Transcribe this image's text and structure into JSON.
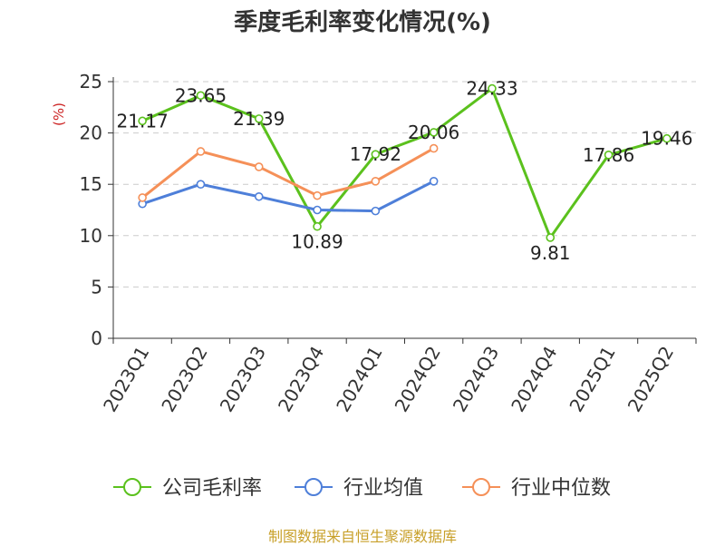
{
  "chart_data": {
    "type": "line",
    "title": "季度毛利率变化情况(%)",
    "ylabel": "(%)",
    "xlabel": "",
    "ylim": [
      0,
      25
    ],
    "yticks": [
      0,
      5,
      10,
      15,
      20,
      25
    ],
    "grid": true,
    "legend_position": "bottom",
    "categories": [
      "2023Q1",
      "2023Q2",
      "2023Q3",
      "2023Q4",
      "2024Q1",
      "2024Q2",
      "2024Q3",
      "2024Q4",
      "2025Q1",
      "2025Q2"
    ],
    "series": [
      {
        "name": "公司毛利率",
        "color": "#5bc11d",
        "values": [
          21.17,
          23.65,
          21.39,
          10.89,
          17.92,
          20.06,
          24.33,
          9.81,
          17.86,
          19.46
        ],
        "labels": [
          "21.17",
          "23.65",
          "21.39",
          "10.89",
          "17.92",
          "20.06",
          "24.33",
          "9.81",
          "17.86",
          "19.46"
        ]
      },
      {
        "name": "行业均值",
        "color": "#4e7fd9",
        "values": [
          13.1,
          15.0,
          13.8,
          12.5,
          12.4,
          15.3,
          null,
          null,
          null,
          null
        ]
      },
      {
        "name": "行业中位数",
        "color": "#f59058",
        "values": [
          13.7,
          18.2,
          16.7,
          13.9,
          15.3,
          18.5,
          null,
          null,
          null,
          null
        ]
      }
    ]
  },
  "source": "制图数据来自恒生聚源数据库",
  "colors": {
    "ylabel": "#cc2222",
    "grid": "#cccccc",
    "axis": "#333333",
    "source": "#c8a02a"
  }
}
